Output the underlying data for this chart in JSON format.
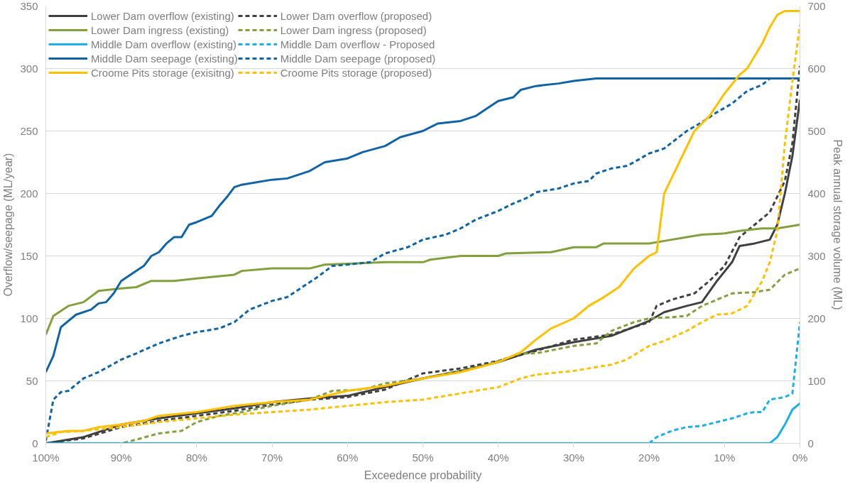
{
  "chart_data": {
    "type": "line",
    "xlabel": "Exceedence probability",
    "ylabel": "Overflow/seepage (ML/year)",
    "y2label": "Peak annual storage volume (ML)",
    "xlim": [
      100,
      0
    ],
    "xticks": [
      {
        "value": 100,
        "label": "100%"
      },
      {
        "value": 90,
        "label": "90%"
      },
      {
        "value": 80,
        "label": "80%"
      },
      {
        "value": 70,
        "label": "70%"
      },
      {
        "value": 60,
        "label": "60%"
      },
      {
        "value": 50,
        "label": "50%"
      },
      {
        "value": 40,
        "label": "40%"
      },
      {
        "value": 30,
        "label": "30%"
      },
      {
        "value": 20,
        "label": "20%"
      },
      {
        "value": 10,
        "label": "10%"
      },
      {
        "value": 0,
        "label": "0%"
      }
    ],
    "ylim": [
      0,
      350
    ],
    "yticks": [
      0,
      50,
      100,
      150,
      200,
      250,
      300,
      350
    ],
    "y2lim": [
      0,
      700
    ],
    "y2ticks": [
      0,
      100,
      200,
      300,
      400,
      500,
      600,
      700
    ],
    "grid": "y",
    "legend": "top left",
    "series": [
      {
        "name": "Lower Dam overflow (existing)",
        "color": "#404040",
        "line_style": "solid",
        "x": [
          100,
          95,
          90,
          85,
          80,
          75,
          70,
          65,
          60,
          55,
          50,
          45,
          40,
          35,
          30,
          25,
          20,
          18,
          15,
          13,
          11,
          9,
          8,
          6,
          4,
          3,
          2,
          1,
          0
        ],
        "values": [
          0,
          5,
          15,
          20,
          24,
          28,
          33,
          36,
          38,
          45,
          52,
          58,
          65,
          75,
          81,
          86,
          98,
          105,
          110,
          113,
          130,
          145,
          158,
          160,
          163,
          175,
          200,
          230,
          275
        ]
      },
      {
        "name": "Lower Dam overflow (proposed)",
        "color": "#404040",
        "line_style": "dashed",
        "x": [
          100,
          95,
          90,
          85,
          80,
          75,
          70,
          65,
          60,
          55,
          50,
          45,
          40,
          35,
          30,
          25,
          20,
          19,
          17,
          14,
          12,
          10,
          8,
          6,
          4,
          2,
          1,
          0
        ],
        "values": [
          0,
          4,
          13,
          18,
          22,
          26,
          31,
          35,
          37,
          43,
          56,
          60,
          66,
          74,
          83,
          87,
          97,
          110,
          115,
          120,
          130,
          142,
          165,
          175,
          185,
          210,
          240,
          302
        ]
      },
      {
        "name": "Lower Dam ingress (existing)",
        "color": "#82a03c",
        "line_style": "solid",
        "x": [
          100,
          99,
          97,
          95,
          93,
          90,
          88,
          86,
          83,
          80,
          75,
          74,
          70,
          65,
          63,
          55,
          50,
          49,
          45,
          40,
          39,
          33,
          30,
          27,
          26,
          20,
          18,
          15,
          13,
          10,
          8,
          5,
          3,
          0
        ],
        "values": [
          87,
          102,
          110,
          113,
          122,
          124,
          125,
          130,
          130,
          132,
          135,
          138,
          140,
          140,
          143,
          145,
          145,
          147,
          150,
          150,
          152,
          153,
          157,
          157,
          160,
          160,
          162,
          165,
          167,
          168,
          170,
          172,
          172,
          175
        ]
      },
      {
        "name": "Lower Dam ingress (proposed)",
        "color": "#82a03c",
        "line_style": "dashed",
        "x": [
          100,
          90,
          88,
          85,
          82,
          80,
          77,
          74,
          70,
          65,
          62,
          58,
          55,
          50,
          45,
          42,
          40,
          37,
          35,
          30,
          27,
          25,
          22,
          20,
          17,
          15,
          13,
          11,
          9,
          6,
          4,
          2,
          0
        ],
        "values": [
          0,
          0,
          3,
          8,
          10,
          17,
          22,
          25,
          30,
          35,
          42,
          43,
          48,
          52,
          58,
          62,
          66,
          72,
          72,
          78,
          80,
          90,
          97,
          100,
          101,
          102,
          110,
          115,
          120,
          121,
          123,
          135,
          140
        ]
      },
      {
        "name": "Middle Dam overflow (existing)",
        "color": "#1cb0e8",
        "line_style": "solid",
        "x": [
          100,
          50,
          5,
          4,
          3,
          2,
          1,
          0
        ],
        "values": [
          0,
          0,
          0,
          0,
          5,
          15,
          27,
          32
        ]
      },
      {
        "name": "Middle Dam overflow - Proposed",
        "color": "#1cb0e8",
        "line_style": "dashed",
        "x": [
          100,
          50,
          20,
          19,
          17,
          15,
          13,
          11,
          9,
          7,
          6,
          5,
          4,
          2,
          1,
          0
        ],
        "values": [
          0,
          0,
          0,
          5,
          10,
          13,
          14,
          17,
          20,
          24,
          25,
          25,
          35,
          37,
          40,
          97
        ]
      },
      {
        "name": "Middle Dam seepage (existing)",
        "color": "#0f64a8",
        "line_style": "solid",
        "x": [
          100,
          99,
          98,
          96,
          94,
          93,
          92,
          91,
          90,
          88,
          87,
          86,
          85,
          84,
          83,
          82,
          81,
          80,
          78,
          77,
          76,
          75,
          74,
          70,
          68,
          65,
          63,
          60,
          58,
          55,
          53,
          50,
          48,
          45,
          43,
          41,
          40,
          38,
          37,
          35,
          32,
          30,
          27,
          0
        ],
        "values": [
          57,
          70,
          93,
          103,
          107,
          112,
          113,
          120,
          130,
          138,
          142,
          150,
          153,
          160,
          165,
          165,
          175,
          177,
          182,
          190,
          197,
          205,
          207,
          211,
          212,
          218,
          225,
          228,
          233,
          238,
          245,
          250,
          256,
          258,
          262,
          270,
          274,
          277,
          283,
          286,
          288,
          290,
          292,
          292
        ]
      },
      {
        "name": "Middle Dam seepage (proposed)",
        "color": "#0f64a8",
        "line_style": "dashed",
        "x": [
          100,
          99,
          98,
          97,
          95,
          93,
          90,
          88,
          85,
          82,
          80,
          77,
          75,
          73,
          70,
          68,
          66,
          64,
          62,
          60,
          57,
          55,
          52,
          50,
          47,
          45,
          43,
          40,
          38,
          36,
          35,
          32,
          30,
          28,
          27,
          25,
          23,
          22,
          20,
          18,
          15,
          13,
          11,
          9,
          7,
          5,
          4,
          0
        ],
        "values": [
          2,
          35,
          41,
          42,
          52,
          57,
          67,
          72,
          80,
          86,
          89,
          92,
          97,
          107,
          114,
          117,
          125,
          133,
          142,
          143,
          145,
          152,
          157,
          163,
          167,
          172,
          179,
          186,
          192,
          197,
          201,
          204,
          208,
          210,
          216,
          220,
          222,
          225,
          232,
          236,
          250,
          257,
          265,
          272,
          282,
          287,
          292,
          292
        ]
      },
      {
        "name": "Croome Pits storage (exisitng)",
        "color": "#ffc000",
        "line_style": "solid",
        "axis": "y2",
        "x": [
          100,
          97,
          95,
          93,
          90,
          87,
          85,
          80,
          75,
          70,
          65,
          60,
          55,
          50,
          45,
          40,
          37,
          35,
          33,
          30,
          28,
          26,
          24,
          22,
          20,
          19,
          18,
          16,
          14,
          12,
          10,
          8,
          7,
          5,
          4,
          3,
          2,
          0
        ],
        "values": [
          16,
          20,
          20,
          26,
          30,
          36,
          44,
          50,
          60,
          66,
          70,
          84,
          92,
          104,
          114,
          130,
          146,
          166,
          184,
          200,
          220,
          234,
          250,
          280,
          300,
          306,
          400,
          450,
          500,
          524,
          560,
          590,
          600,
          640,
          666,
          686,
          692,
          692
        ]
      },
      {
        "name": "Croome Pits storage (proposed)",
        "color": "#ffc000",
        "line_style": "dashed",
        "axis": "y2",
        "x": [
          100,
          98,
          95,
          90,
          85,
          80,
          75,
          70,
          65,
          60,
          55,
          50,
          45,
          40,
          37,
          35,
          30,
          25,
          23,
          20,
          18,
          15,
          13,
          11,
          9,
          7,
          6,
          5,
          4,
          3,
          2,
          1,
          0
        ],
        "values": [
          10,
          18,
          20,
          26,
          34,
          40,
          46,
          50,
          54,
          60,
          66,
          70,
          80,
          90,
          104,
          110,
          116,
          126,
          134,
          156,
          164,
          180,
          194,
          206,
          208,
          220,
          240,
          260,
          290,
          340,
          480,
          580,
          670
        ]
      }
    ]
  }
}
